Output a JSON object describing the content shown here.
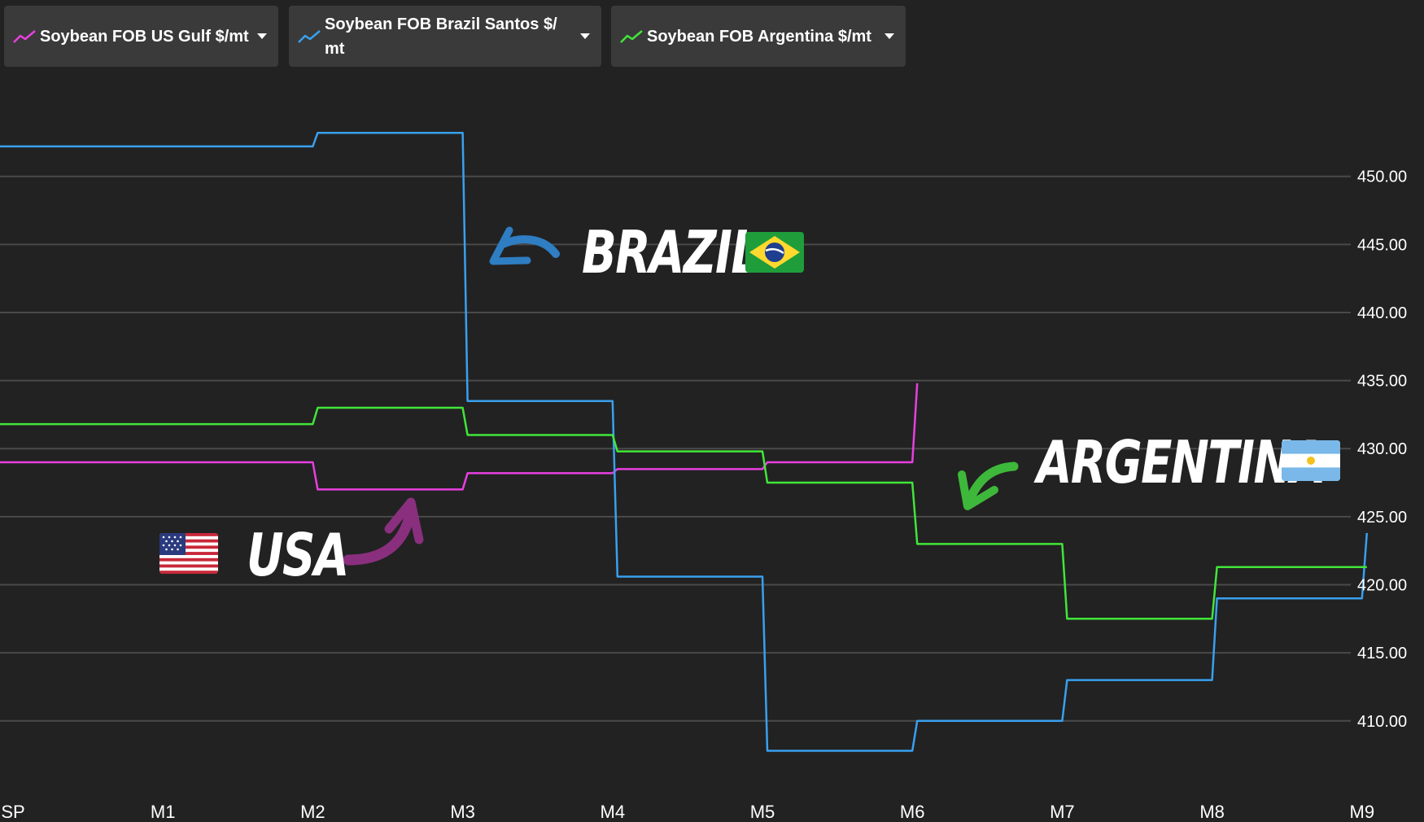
{
  "legend": [
    {
      "label": "Soybean FOB US Gulf $/mt",
      "color": "#e83fe0"
    },
    {
      "label": "Soybean FOB Brazil Santos $/\nmt",
      "color": "#39a0ee"
    },
    {
      "label": "Soybean FOB Argentina $/mt",
      "color": "#41e63a"
    }
  ],
  "annotations": {
    "brazil": "BRAZIL",
    "usa": "USA",
    "argentina": "ARGENTINA"
  },
  "colors": {
    "background": "#222222",
    "grid": "#4a4a4a",
    "axis_text": "#ffffff",
    "arrow_brazil": "#2f7dc2",
    "arrow_usa": "#8a2f7e",
    "arrow_argentina": "#3eb83a"
  },
  "icons": [
    "line-chart-icon",
    "caret-down-icon",
    "curved-arrow-icon",
    "us-flag-icon",
    "brazil-flag-icon",
    "argentina-flag-icon"
  ],
  "chart_data": {
    "type": "line",
    "step": true,
    "categories": [
      "SP",
      "M1",
      "M2",
      "M3",
      "M4",
      "M5",
      "M6",
      "M7",
      "M8",
      "M9"
    ],
    "yticks": [
      410,
      415,
      420,
      425,
      430,
      435,
      440,
      445,
      450
    ],
    "ylim": [
      405.8,
      456.5
    ],
    "y_tick_format": "2 decimals",
    "axis_position": "right",
    "grid": true,
    "series": [
      {
        "name": "Soybean FOB US Gulf $/mt",
        "color": "#e83fe0",
        "values": [
          429.0,
          429.0,
          427.0,
          428.2,
          428.5,
          429.0,
          434.8,
          null,
          null,
          null
        ]
      },
      {
        "name": "Soybean FOB Brazil Santos $/mt",
        "color": "#39a0ee",
        "values": [
          452.2,
          452.2,
          453.2,
          433.5,
          420.6,
          407.8,
          410.0,
          413.0,
          419.0,
          423.8
        ]
      },
      {
        "name": "Soybean FOB Argentina $/mt",
        "color": "#41e63a",
        "values": [
          431.8,
          431.8,
          433.0,
          431.0,
          429.8,
          427.5,
          423.0,
          417.5,
          421.3,
          421.3
        ]
      }
    ]
  }
}
